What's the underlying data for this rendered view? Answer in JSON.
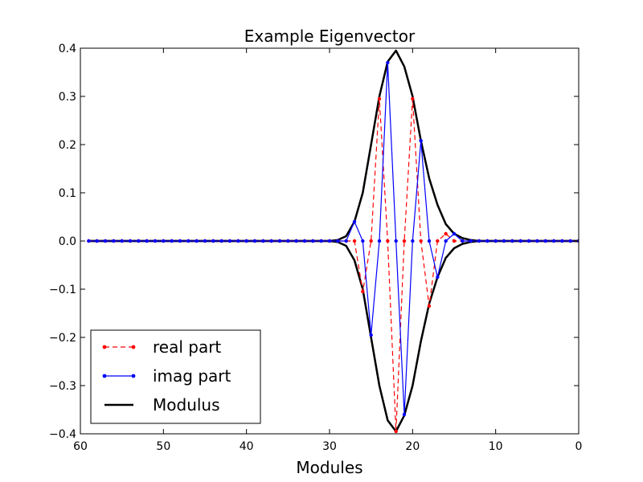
{
  "chart_data": {
    "type": "line",
    "title": "Example Eigenvector",
    "xlabel": "Modules",
    "ylabel": "",
    "xlim": [
      60,
      0
    ],
    "ylim": [
      -0.4,
      0.4
    ],
    "x_reversed": true,
    "grid": false,
    "legend_position": "lower-left",
    "xticks": [
      60,
      50,
      40,
      30,
      20,
      10,
      0
    ],
    "xtick_labels": [
      "60",
      "50",
      "40",
      "30",
      "20",
      "10",
      "0"
    ],
    "yticks": [
      0.4,
      0.3,
      0.2,
      0.1,
      0.0,
      -0.1,
      -0.2,
      -0.3,
      -0.4
    ],
    "ytick_labels": [
      "0.4",
      "0.3",
      "0.2",
      "0.1",
      "0.0",
      "−0.1",
      "−0.2",
      "−0.3",
      "−0.4"
    ],
    "series": [
      {
        "name": "real part",
        "color": "#ff0000",
        "style": "dashed",
        "marker": "dot",
        "x": [
          59,
          58,
          57,
          56,
          55,
          54,
          53,
          52,
          51,
          50,
          49,
          48,
          47,
          46,
          45,
          44,
          43,
          42,
          41,
          40,
          39,
          38,
          37,
          36,
          35,
          34,
          33,
          32,
          31,
          30,
          29,
          28,
          27,
          26,
          25,
          24,
          23,
          22,
          21,
          20,
          19,
          18,
          17,
          16,
          15,
          14,
          13,
          12,
          11,
          10,
          9,
          8,
          7,
          6,
          5,
          4,
          3,
          2,
          1,
          0
        ],
        "y": [
          0,
          0,
          0,
          0,
          0,
          0,
          0,
          0,
          0,
          0,
          0,
          0,
          0,
          0,
          0,
          0,
          0,
          0,
          0,
          0,
          0,
          0,
          0,
          0,
          0,
          0,
          0,
          0,
          0,
          0,
          0,
          0,
          0,
          -0.105,
          0,
          0.295,
          0,
          -0.395,
          0,
          0.295,
          0,
          -0.135,
          0,
          0.015,
          0,
          0,
          0,
          0,
          0,
          0,
          0,
          0,
          0,
          0,
          0,
          0,
          0,
          0,
          0,
          0
        ]
      },
      {
        "name": "imag part",
        "color": "#0000ff",
        "style": "solid",
        "marker": "dot",
        "x": [
          59,
          58,
          57,
          56,
          55,
          54,
          53,
          52,
          51,
          50,
          49,
          48,
          47,
          46,
          45,
          44,
          43,
          42,
          41,
          40,
          39,
          38,
          37,
          36,
          35,
          34,
          33,
          32,
          31,
          30,
          29,
          28,
          27,
          26,
          25,
          24,
          23,
          22,
          21,
          20,
          19,
          18,
          17,
          16,
          15,
          14,
          13,
          12,
          11,
          10,
          9,
          8,
          7,
          6,
          5,
          4,
          3,
          2,
          1,
          0
        ],
        "y": [
          0,
          0,
          0,
          0,
          0,
          0,
          0,
          0,
          0,
          0,
          0,
          0,
          0,
          0,
          0,
          0,
          0,
          0,
          0,
          0,
          0,
          0,
          0,
          0,
          0,
          0,
          0,
          0,
          0,
          0,
          0,
          0,
          0.04,
          0,
          -0.195,
          0,
          0.37,
          0,
          -0.36,
          0,
          0.208,
          0,
          -0.075,
          0,
          0.015,
          0,
          0,
          0,
          0,
          0,
          0,
          0,
          0,
          0,
          0,
          0,
          0,
          0,
          0,
          0
        ]
      },
      {
        "name": "Modulus",
        "color": "#000000",
        "style": "solid",
        "marker": "none",
        "mirror": true,
        "x": [
          59,
          58,
          57,
          56,
          55,
          54,
          53,
          52,
          51,
          50,
          49,
          48,
          47,
          46,
          45,
          44,
          43,
          42,
          41,
          40,
          39,
          38,
          37,
          36,
          35,
          34,
          33,
          32,
          31,
          30,
          29,
          28,
          27,
          26,
          25,
          24,
          23,
          22,
          21,
          20,
          19,
          18,
          17,
          16,
          15,
          14,
          13,
          12,
          11,
          10,
          9,
          8,
          7,
          6,
          5,
          4,
          3,
          2,
          1,
          0
        ],
        "y": [
          0,
          0,
          0,
          0,
          0,
          0,
          0,
          0,
          0,
          0,
          0,
          0,
          0,
          0,
          0,
          0,
          0,
          0,
          0,
          0,
          0,
          0,
          0,
          0,
          0,
          0,
          0,
          0,
          0,
          0,
          0.002,
          0.01,
          0.04,
          0.1,
          0.2,
          0.3,
          0.372,
          0.395,
          0.362,
          0.3,
          0.208,
          0.13,
          0.075,
          0.035,
          0.015,
          0.006,
          0.002,
          0,
          0,
          0,
          0,
          0,
          0,
          0,
          0,
          0,
          0,
          0,
          0,
          0
        ]
      }
    ]
  }
}
